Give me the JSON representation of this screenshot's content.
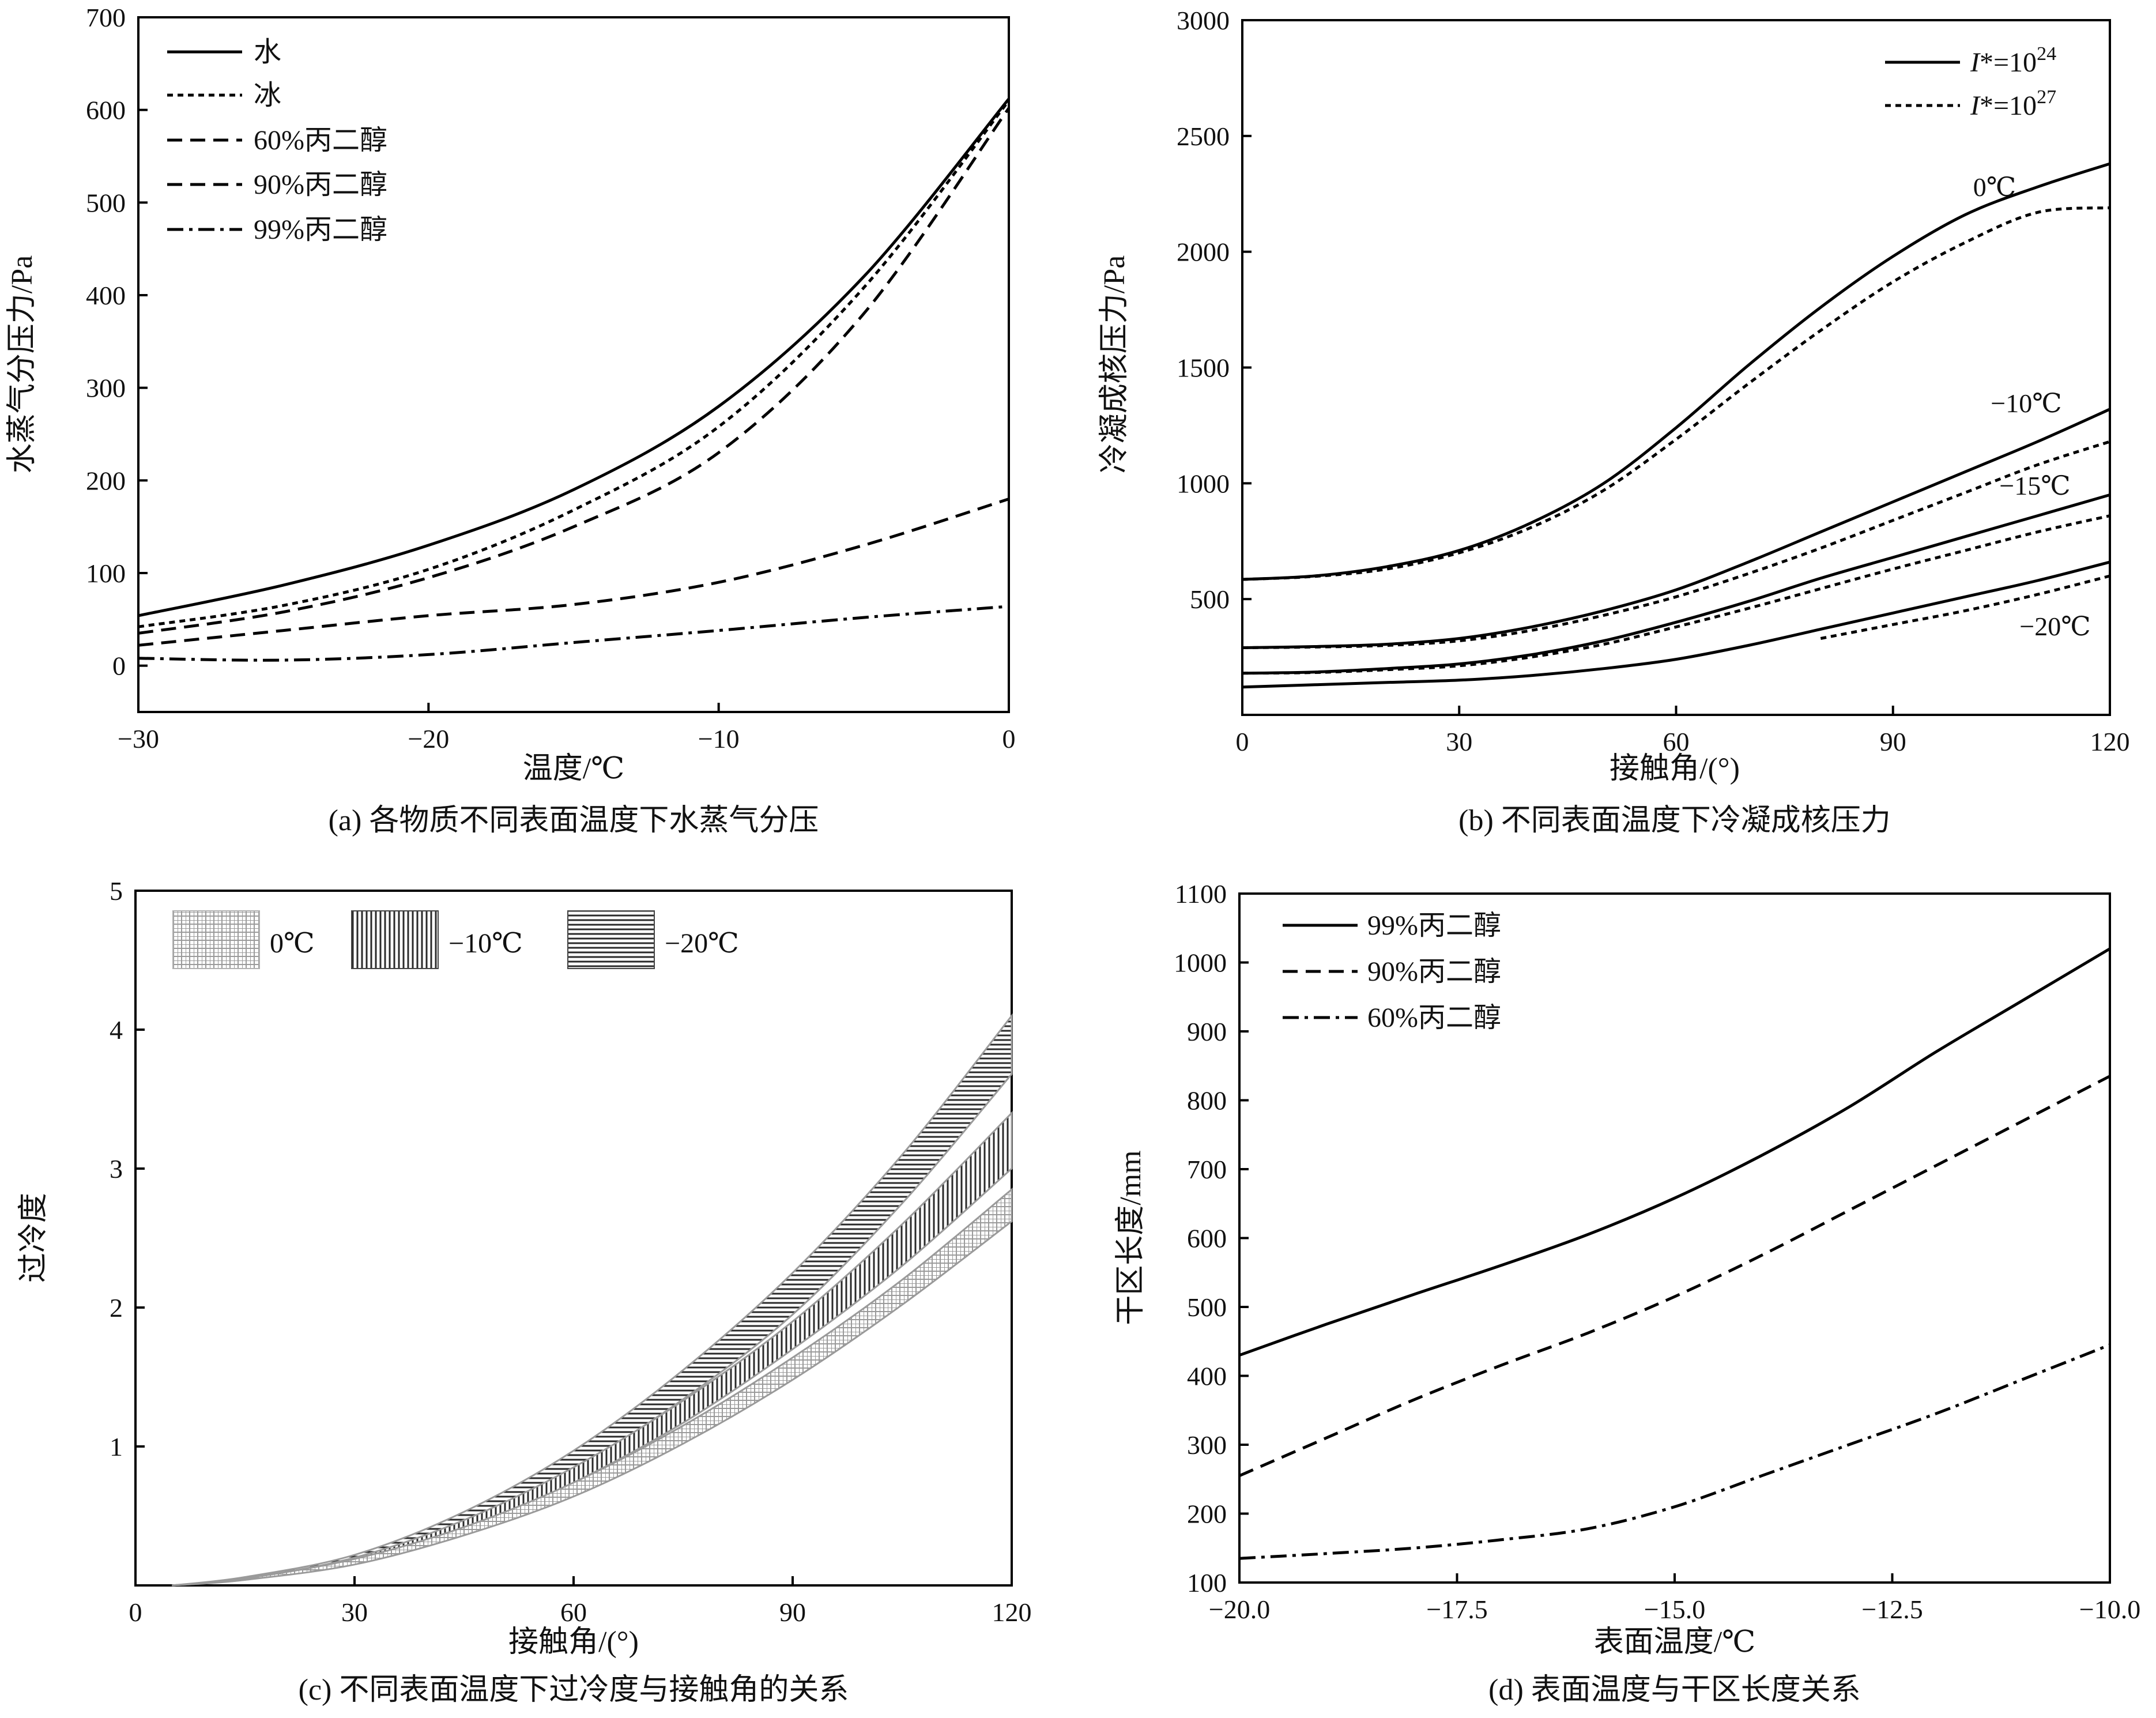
{
  "panels": [
    {
      "id": "a",
      "type": "line",
      "caption": "(a) 各物质不同表面温度下水蒸气分压",
      "xlabel": "温度/℃",
      "ylabel": "水蒸气分压力/Pa",
      "xlim": [
        -30,
        0
      ],
      "ylim": [
        -50,
        700
      ],
      "xticks": [
        -30,
        -20,
        -10,
        0
      ],
      "xtick_labels": [
        "−30",
        "−20",
        "−10",
        "0"
      ],
      "yticks": [
        0,
        100,
        200,
        300,
        400,
        500,
        600,
        700
      ],
      "ytick_labels": [
        "0",
        "100",
        "200",
        "300",
        "400",
        "500",
        "600",
        "700"
      ],
      "legend_position": "top-left",
      "series": [
        {
          "name": "水",
          "dash": "solid",
          "x": [
            -30,
            -25,
            -20,
            -15,
            -10,
            -5,
            0
          ],
          "y": [
            54,
            87,
            130,
            190,
            280,
            420,
            612
          ]
        },
        {
          "name": "冰",
          "dash": "dot",
          "x": [
            -30,
            -25,
            -20,
            -15,
            -10,
            -5,
            0
          ],
          "y": [
            42,
            65,
            104,
            168,
            258,
            408,
            610
          ]
        },
        {
          "name": "60%丙二醇",
          "dash": "dash",
          "x": [
            -30,
            -25,
            -20,
            -15,
            -10,
            -5,
            0
          ],
          "y": [
            22,
            38,
            54,
            66,
            90,
            130,
            180
          ]
        },
        {
          "name": "90%丙二醇",
          "dash": "dash",
          "x": [
            -30,
            -25,
            -20,
            -15,
            -10,
            -5,
            0
          ],
          "y": [
            35,
            58,
            95,
            150,
            230,
            380,
            602
          ]
        },
        {
          "name": "99%丙二醇",
          "dash": "dashdot",
          "x": [
            -30,
            -25,
            -20,
            -15,
            -10,
            -5,
            0
          ],
          "y": [
            8,
            6,
            12,
            25,
            38,
            52,
            64
          ]
        }
      ]
    },
    {
      "id": "b",
      "type": "line",
      "caption": "(b) 不同表面温度下冷凝成核压力",
      "xlabel": "接触角/(°)",
      "ylabel": "冷凝成核压力/Pa",
      "xlim": [
        0,
        120
      ],
      "ylim": [
        0,
        3000
      ],
      "xticks": [
        0,
        30,
        60,
        90,
        120
      ],
      "xtick_labels": [
        "0",
        "30",
        "60",
        "90",
        "120"
      ],
      "yticks": [
        500,
        1000,
        1500,
        2000,
        2500,
        3000
      ],
      "ytick_labels": [
        "500",
        "1000",
        "1500",
        "2000",
        "2500",
        "3000"
      ],
      "legend_position": "top-right",
      "legend": [
        {
          "prefix": "I",
          "mid": "*=10",
          "sup": "24",
          "dash": "solid"
        },
        {
          "prefix": "I",
          "mid": "*=10",
          "sup": "27",
          "dash": "dot"
        }
      ],
      "annotations": [
        "0℃",
        "−10℃",
        "−15℃",
        "−20℃"
      ],
      "series": [
        {
          "name": "0℃ I*=1e24",
          "dash": "solid",
          "x": [
            0,
            10,
            20,
            30,
            40,
            50,
            60,
            70,
            80,
            90,
            100,
            110,
            120
          ],
          "y": [
            585,
            600,
            640,
            710,
            830,
            1000,
            1240,
            1510,
            1760,
            1980,
            2160,
            2280,
            2380
          ]
        },
        {
          "name": "0℃ I*=1e27",
          "dash": "dot",
          "x": [
            0,
            10,
            20,
            30,
            40,
            50,
            60,
            70,
            80,
            90,
            100,
            110,
            120
          ],
          "y": [
            585,
            598,
            630,
            700,
            810,
            970,
            1190,
            1430,
            1660,
            1870,
            2040,
            2170,
            2190
          ]
        },
        {
          "name": "−10℃ I*=1e24",
          "dash": "solid",
          "x": [
            0,
            10,
            20,
            30,
            40,
            50,
            60,
            70,
            80,
            90,
            100,
            110,
            120
          ],
          "y": [
            290,
            295,
            305,
            330,
            380,
            450,
            540,
            660,
            790,
            920,
            1050,
            1180,
            1320
          ]
        },
        {
          "name": "−10℃ I*=1e27",
          "dash": "dot",
          "x": [
            0,
            10,
            20,
            30,
            40,
            50,
            60,
            70,
            80,
            90,
            100,
            110,
            120
          ],
          "y": [
            290,
            293,
            300,
            320,
            365,
            430,
            510,
            610,
            720,
            840,
            960,
            1080,
            1180
          ]
        },
        {
          "name": "−15℃ I*=1e24",
          "dash": "solid",
          "x": [
            0,
            10,
            20,
            30,
            40,
            50,
            60,
            70,
            80,
            90,
            100,
            110,
            120
          ],
          "y": [
            180,
            185,
            200,
            220,
            260,
            320,
            400,
            490,
            590,
            680,
            770,
            860,
            950
          ]
        },
        {
          "name": "−15℃ I*=1e27",
          "dash": "dot",
          "x": [
            0,
            10,
            20,
            30,
            40,
            50,
            60,
            70,
            80,
            90,
            100,
            110,
            120
          ],
          "y": [
            180,
            183,
            195,
            212,
            250,
            305,
            380,
            460,
            545,
            630,
            710,
            790,
            860
          ]
        },
        {
          "name": "−20℃ I*=1e24",
          "dash": "solid",
          "x": [
            0,
            10,
            20,
            30,
            40,
            50,
            60,
            70,
            80,
            90,
            100,
            110,
            120
          ],
          "y": [
            120,
            130,
            140,
            150,
            170,
            200,
            240,
            300,
            370,
            440,
            510,
            580,
            660
          ]
        },
        {
          "name": "−20℃ I*=1e27",
          "dash": "dot",
          "x": [
            80,
            90,
            100,
            110,
            120
          ],
          "y": [
            330,
            390,
            450,
            520,
            600
          ]
        }
      ]
    },
    {
      "id": "c",
      "type": "area",
      "caption": "(c) 不同表面温度下过冷度与接触角的关系",
      "xlabel": "接触角/(°)",
      "ylabel": "过冷度",
      "xlim": [
        0,
        120
      ],
      "ylim": [
        0,
        5
      ],
      "xticks": [
        0,
        30,
        60,
        90,
        120
      ],
      "xtick_labels": [
        "0",
        "30",
        "60",
        "90",
        "120"
      ],
      "yticks": [
        1,
        2,
        3,
        4,
        5
      ],
      "ytick_labels": [
        "1",
        "2",
        "3",
        "4",
        "5"
      ],
      "legend_position": "top-left",
      "legend": [
        "0℃",
        "−10℃",
        "−20℃"
      ],
      "bands": [
        {
          "name": "0℃",
          "pattern": "grid",
          "x": [
            5,
            15,
            30,
            45,
            60,
            75,
            90,
            105,
            120
          ],
          "upper": [
            0.0,
            0.05,
            0.19,
            0.42,
            0.74,
            1.15,
            1.64,
            2.2,
            2.85
          ],
          "lower": [
            0.0,
            0.04,
            0.15,
            0.36,
            0.64,
            1.02,
            1.48,
            2.02,
            2.62
          ]
        },
        {
          "name": "−10℃",
          "pattern": "vertical",
          "x": [
            5,
            15,
            30,
            45,
            60,
            75,
            90,
            105,
            120
          ],
          "upper": [
            0.0,
            0.05,
            0.2,
            0.47,
            0.85,
            1.33,
            1.9,
            2.6,
            3.4
          ],
          "lower": [
            0.0,
            0.04,
            0.17,
            0.4,
            0.74,
            1.17,
            1.7,
            2.3,
            3.0
          ]
        },
        {
          "name": "−20℃",
          "pattern": "horizontal",
          "x": [
            5,
            15,
            30,
            45,
            60,
            75,
            90,
            105,
            120
          ],
          "upper": [
            0.0,
            0.06,
            0.22,
            0.53,
            0.97,
            1.55,
            2.25,
            3.1,
            4.1
          ],
          "lower": [
            0.0,
            0.05,
            0.19,
            0.46,
            0.84,
            1.34,
            1.95,
            2.75,
            3.68
          ]
        }
      ]
    },
    {
      "id": "d",
      "type": "line",
      "caption": "(d) 表面温度与干区长度关系",
      "xlabel": "表面温度/℃",
      "ylabel": "干区长度/mm",
      "xlim": [
        -20,
        -10
      ],
      "ylim": [
        100,
        1100
      ],
      "xticks": [
        -20,
        -17.5,
        -15,
        -12.5,
        -10
      ],
      "xtick_labels": [
        "−20.0",
        "−17.5",
        "−15.0",
        "−12.5",
        "−10.0"
      ],
      "yticks": [
        100,
        200,
        300,
        400,
        500,
        600,
        700,
        800,
        900,
        1000,
        1100
      ],
      "ytick_labels": [
        "100",
        "200",
        "300",
        "400",
        "500",
        "600",
        "700",
        "800",
        "900",
        "1000",
        "1100"
      ],
      "legend_position": "top-left",
      "series": [
        {
          "name": "99%丙二醇",
          "dash": "solid",
          "x": [
            -20,
            -19,
            -18,
            -17,
            -16,
            -15,
            -14,
            -13,
            -12,
            -11,
            -10
          ],
          "y": [
            430,
            475,
            518,
            560,
            605,
            658,
            720,
            790,
            870,
            945,
            1020
          ]
        },
        {
          "name": "90%丙二醇",
          "dash": "dash",
          "x": [
            -20,
            -19,
            -18,
            -17,
            -16,
            -15,
            -14,
            -13,
            -12,
            -11,
            -10
          ],
          "y": [
            255,
            310,
            365,
            415,
            462,
            515,
            575,
            640,
            705,
            770,
            835
          ]
        },
        {
          "name": "60%丙二醇",
          "dash": "dashdot",
          "x": [
            -20,
            -19,
            -18,
            -17,
            -16,
            -15,
            -14,
            -13,
            -12,
            -11,
            -10
          ],
          "y": [
            135,
            142,
            150,
            162,
            178,
            210,
            255,
            300,
            345,
            395,
            445
          ]
        }
      ]
    }
  ]
}
